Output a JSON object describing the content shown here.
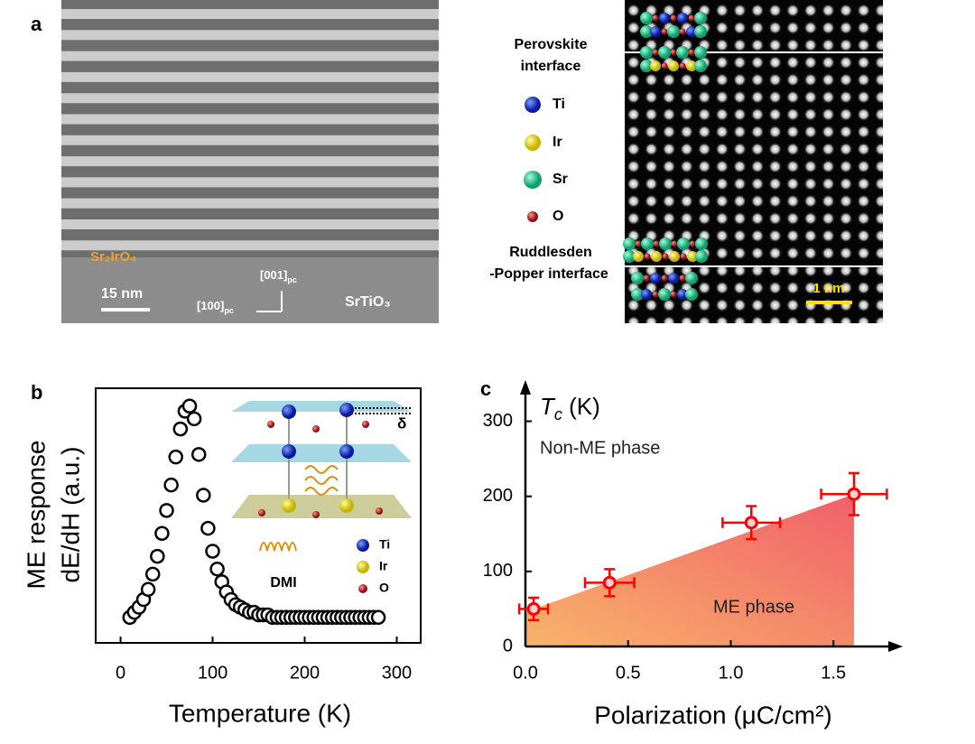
{
  "figure_a": {
    "panel_label": "a",
    "film_label": "Sr₂IrO₄",
    "scale_bar": "15 nm",
    "axis_up": "[001]",
    "axis_up_sub": "pc",
    "axis_left": "[100]",
    "axis_left_sub": "pc",
    "substrate_label": "SrTiO₃",
    "interface_top": [
      "Perovskite",
      "interface"
    ],
    "legend": [
      "Ti",
      "Ir",
      "Sr",
      "O"
    ],
    "interface_bottom": [
      "Ruddlesden",
      "-Popper interface"
    ],
    "scale_bar_right": "1 nm"
  },
  "chart_data": [
    {
      "type": "scatter",
      "panel_label": "b",
      "x_label": "Temperature (K)",
      "y_label": [
        "ME response",
        "dE/dH (a.u.)"
      ],
      "x": [
        10,
        15,
        20,
        25,
        30,
        35,
        40,
        45,
        50,
        55,
        60,
        65,
        70,
        75,
        80,
        85,
        90,
        95,
        100,
        105,
        110,
        115,
        120,
        125,
        130,
        135,
        140,
        145,
        150,
        155,
        160,
        165,
        170,
        175,
        180,
        185,
        190,
        195,
        200,
        205,
        210,
        215,
        220,
        225,
        230,
        235,
        240,
        245,
        250,
        255,
        260,
        265,
        270,
        275,
        280
      ],
      "values": [
        0.1,
        0.12,
        0.14,
        0.17,
        0.21,
        0.27,
        0.34,
        0.43,
        0.52,
        0.62,
        0.73,
        0.84,
        0.91,
        0.93,
        0.88,
        0.74,
        0.58,
        0.45,
        0.36,
        0.29,
        0.24,
        0.2,
        0.17,
        0.15,
        0.14,
        0.13,
        0.12,
        0.12,
        0.11,
        0.11,
        0.11,
        0.1,
        0.1,
        0.1,
        0.1,
        0.1,
        0.1,
        0.1,
        0.1,
        0.1,
        0.1,
        0.1,
        0.1,
        0.1,
        0.1,
        0.1,
        0.1,
        0.1,
        0.1,
        0.1,
        0.1,
        0.1,
        0.1,
        0.1,
        0.1
      ],
      "xlim": [
        -27,
        326
      ],
      "ylim": [
        0,
        1
      ],
      "xticks": [
        0,
        100,
        200,
        300
      ],
      "inset": {
        "delta": "δ",
        "spring": "DMI",
        "legend": [
          "Ti",
          "Ir",
          "O"
        ]
      }
    },
    {
      "type": "scatter",
      "panel_label": "c",
      "color": "#ff0000",
      "x_label": "Polarization (μC/cm²)",
      "y_label": {
        "symbol": "T",
        "sub": "c",
        "unit": " (K)"
      },
      "region_labels": [
        "Non-ME phase",
        "ME phase"
      ],
      "x": [
        0.04,
        0.41,
        1.1,
        1.6
      ],
      "xerr": [
        0.07,
        0.12,
        0.14,
        0.16
      ],
      "values": [
        50,
        85,
        165,
        203
      ],
      "yerr": [
        15,
        18,
        22,
        28
      ],
      "xlim": [
        0,
        1.82
      ],
      "ylim": [
        0,
        350
      ],
      "xticks": [
        {
          "value": 0,
          "label": "0.0"
        },
        0.5,
        {
          "value": 1,
          "label": "1.0"
        },
        1.5
      ],
      "yticks": [
        0,
        100,
        200,
        300
      ]
    }
  ]
}
